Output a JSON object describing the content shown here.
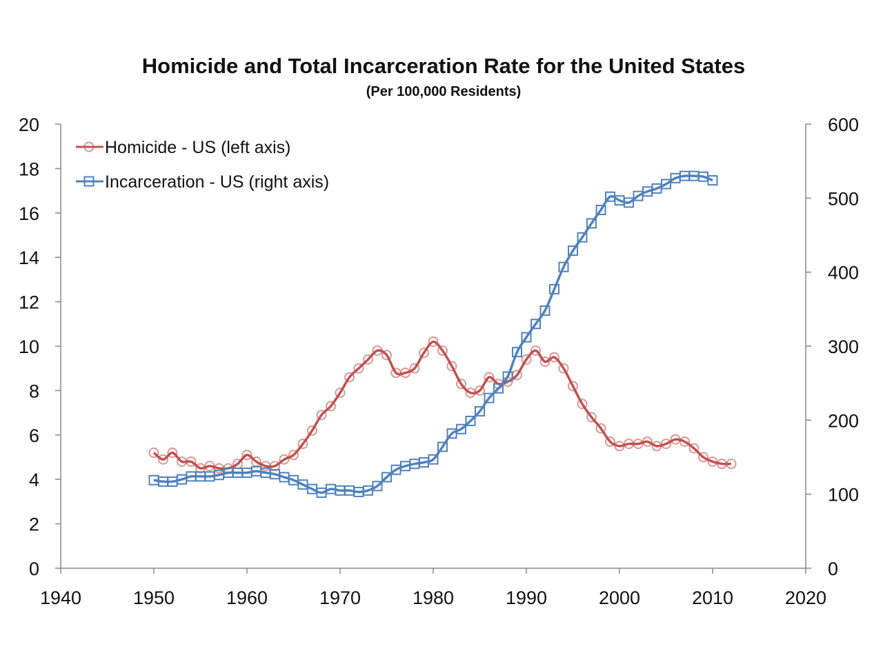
{
  "chart_data": {
    "type": "line",
    "title": "Homicide and Total Incarceration Rate for the United States",
    "subtitle": "(Per 100,000 Residents)",
    "xlabel": "",
    "ylabel": "",
    "xlim": [
      1940,
      2020
    ],
    "ylim_left": [
      0,
      20
    ],
    "ylim_right": [
      0,
      600
    ],
    "x_ticks": [
      "1940",
      "1950",
      "1960",
      "1970",
      "1980",
      "1990",
      "2000",
      "2010",
      "2020"
    ],
    "y_left_ticks": [
      "0",
      "2",
      "4",
      "6",
      "8",
      "10",
      "12",
      "14",
      "16",
      "18",
      "20"
    ],
    "y_right_ticks": [
      "0",
      "100",
      "200",
      "300",
      "400",
      "500",
      "600"
    ],
    "grid": false,
    "legend_position": "top-left",
    "series": [
      {
        "name": "Homicide - US (left axis)",
        "axis": "left",
        "color": "#C0504D",
        "marker": "circle",
        "x": [
          1950,
          1951,
          1952,
          1953,
          1954,
          1955,
          1956,
          1957,
          1958,
          1959,
          1960,
          1961,
          1962,
          1963,
          1964,
          1965,
          1966,
          1967,
          1968,
          1969,
          1970,
          1971,
          1972,
          1973,
          1974,
          1975,
          1976,
          1977,
          1978,
          1979,
          1980,
          1981,
          1982,
          1983,
          1984,
          1985,
          1986,
          1987,
          1988,
          1989,
          1990,
          1991,
          1992,
          1993,
          1994,
          1995,
          1996,
          1997,
          1998,
          1999,
          2000,
          2001,
          2002,
          2003,
          2004,
          2005,
          2006,
          2007,
          2008,
          2009,
          2010,
          2011,
          2012
        ],
        "values": [
          5.2,
          4.9,
          5.2,
          4.8,
          4.8,
          4.5,
          4.6,
          4.5,
          4.5,
          4.7,
          5.1,
          4.8,
          4.6,
          4.6,
          4.9,
          5.1,
          5.6,
          6.2,
          6.9,
          7.3,
          7.9,
          8.6,
          9.0,
          9.4,
          9.8,
          9.6,
          8.8,
          8.8,
          9.0,
          9.7,
          10.2,
          9.8,
          9.1,
          8.3,
          7.9,
          8.0,
          8.6,
          8.3,
          8.4,
          8.7,
          9.4,
          9.8,
          9.3,
          9.5,
          9.0,
          8.2,
          7.4,
          6.8,
          6.3,
          5.7,
          5.5,
          5.6,
          5.6,
          5.7,
          5.5,
          5.6,
          5.8,
          5.7,
          5.4,
          5.0,
          4.8,
          4.7,
          4.7
        ]
      },
      {
        "name": "Incarceration - US (right axis)",
        "axis": "right",
        "color": "#4F81BD",
        "marker": "square",
        "x": [
          1950,
          1951,
          1952,
          1953,
          1954,
          1955,
          1956,
          1957,
          1958,
          1959,
          1960,
          1961,
          1962,
          1963,
          1964,
          1965,
          1966,
          1967,
          1968,
          1969,
          1970,
          1971,
          1972,
          1973,
          1974,
          1975,
          1976,
          1977,
          1978,
          1979,
          1980,
          1981,
          1982,
          1983,
          1984,
          1985,
          1986,
          1987,
          1988,
          1989,
          1990,
          1991,
          1992,
          1993,
          1994,
          1995,
          1996,
          1997,
          1998,
          1999,
          2000,
          2001,
          2002,
          2003,
          2004,
          2005,
          2006,
          2007,
          2008,
          2009,
          2010
        ],
        "values": [
          119,
          117,
          117,
          120,
          124,
          124,
          124,
          126,
          129,
          129,
          129,
          131,
          129,
          127,
          123,
          119,
          113,
          107,
          102,
          107,
          105,
          105,
          103,
          105,
          111,
          123,
          133,
          138,
          141,
          143,
          147,
          164,
          182,
          188,
          199,
          212,
          230,
          243,
          259,
          292,
          312,
          330,
          348,
          377,
          407,
          429,
          447,
          466,
          484,
          502,
          497,
          494,
          503,
          509,
          513,
          519,
          527,
          530,
          530,
          529,
          524
        ]
      }
    ]
  }
}
